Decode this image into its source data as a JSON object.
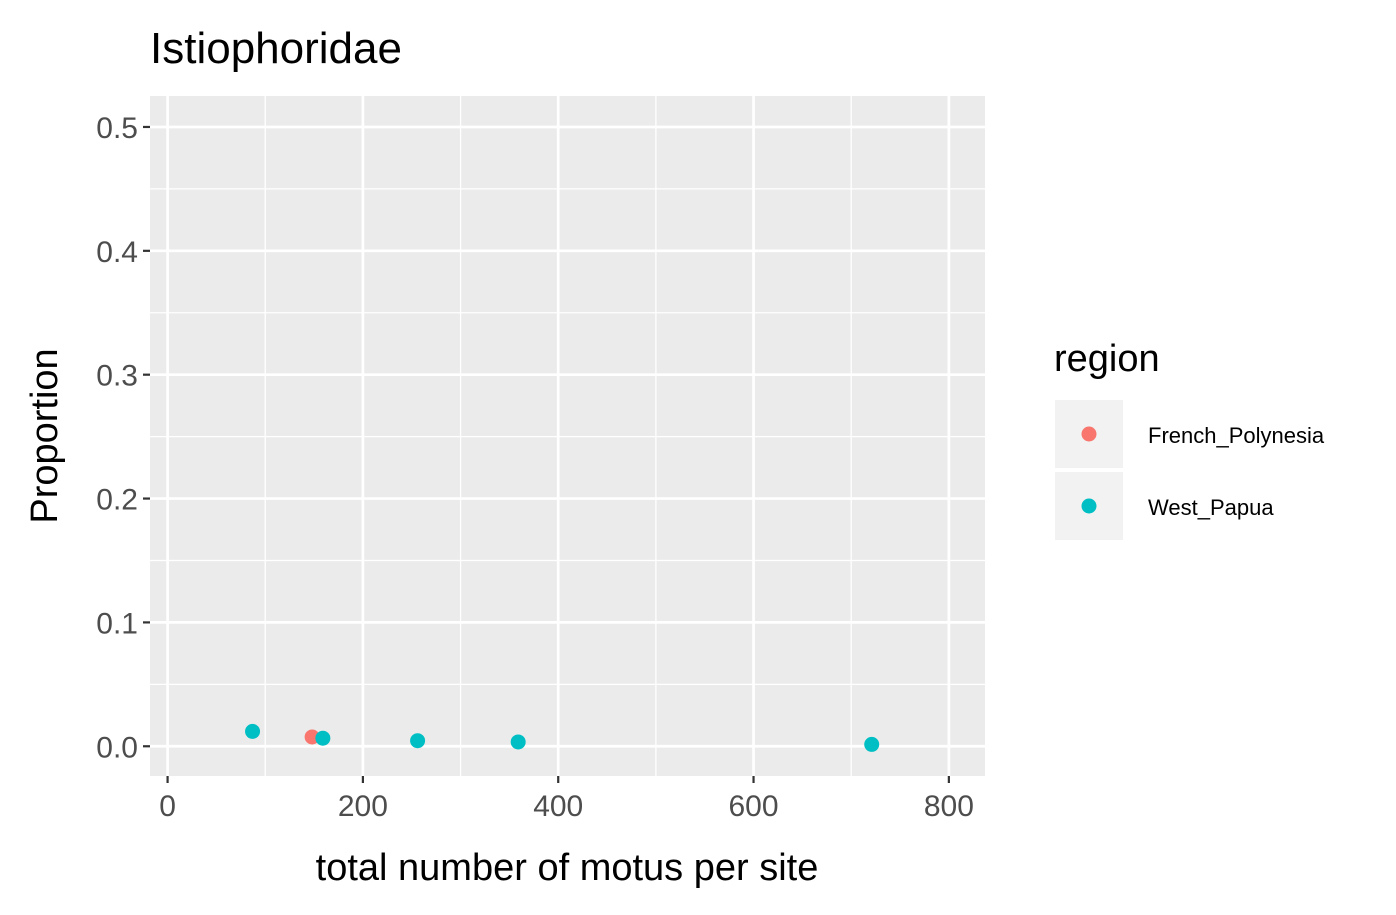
{
  "chart_data": {
    "type": "scatter",
    "title": "Istiophoridae",
    "xlabel": "total number of motus per site",
    "ylabel": "Proportion",
    "xlim": [
      -18,
      837
    ],
    "ylim": [
      -0.024,
      0.525
    ],
    "xticks": [
      0,
      200,
      400,
      600,
      800
    ],
    "xtick_labels": [
      "0",
      "200",
      "400",
      "600",
      "800"
    ],
    "yticks": [
      0.0,
      0.1,
      0.2,
      0.3,
      0.4,
      0.5
    ],
    "ytick_labels": [
      "0.0",
      "0.1",
      "0.2",
      "0.3",
      "0.4",
      "0.5"
    ],
    "grid": true,
    "legend": {
      "title": "region",
      "position": "right"
    },
    "series": [
      {
        "name": "French_Polynesia",
        "color": "#f8766d",
        "points": [
          {
            "x": 148,
            "y": 0.0075
          }
        ]
      },
      {
        "name": "West_Papua",
        "color": "#00bfc4",
        "points": [
          {
            "x": 87,
            "y": 0.012
          },
          {
            "x": 159,
            "y": 0.0065
          },
          {
            "x": 256,
            "y": 0.0045
          },
          {
            "x": 359,
            "y": 0.0035
          },
          {
            "x": 721,
            "y": 0.0015
          }
        ]
      }
    ]
  }
}
